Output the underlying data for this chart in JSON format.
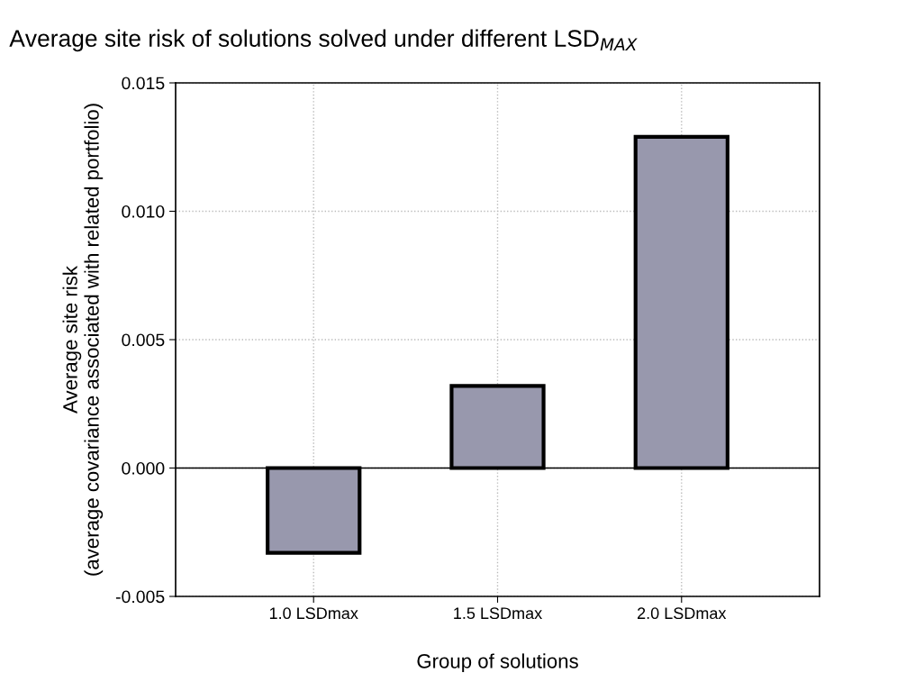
{
  "chart_data": {
    "type": "bar",
    "title": "Average site risk of solutions solved under different LSD$_{MAX}$",
    "xlabel": "Group of solutions",
    "ylabel": "Average site risk\n(average covariance associated with related portfolio)",
    "categories": [
      "1.0 LSDmax",
      "1.5 LSDmax",
      "2.0 LSDmax"
    ],
    "values": [
      -0.0033,
      0.0032,
      0.0129
    ],
    "color": "#9898ad",
    "ylim": [
      -0.005,
      0.015
    ],
    "yticks": [
      {
        "value": -0.005,
        "label": "-0.005"
      },
      {
        "value": 0,
        "label": "0.000"
      },
      {
        "value": 0.005,
        "label": "0.005"
      },
      {
        "value": 0.01,
        "label": "0.010"
      },
      {
        "value": 0.015,
        "label": "0.015"
      }
    ],
    "grid": true,
    "legend": false,
    "ref_lines": [
      {
        "axis": "y",
        "value": 0,
        "color": "#000000",
        "line_style": "solid"
      }
    ]
  }
}
